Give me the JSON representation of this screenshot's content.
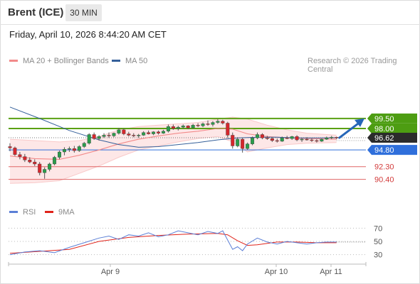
{
  "header": {
    "title": "Brent (ICE)",
    "timeframe": "30 MIN"
  },
  "datetime": "Friday, April 10, 2026 8:44:20 AM CET",
  "legend": {
    "main": [
      {
        "label": "MA 20 + Bollinger Bands",
        "color": "#f28a8a"
      },
      {
        "label": "MA 50",
        "color": "#35609a"
      }
    ],
    "rsi": [
      {
        "label": "RSI",
        "color": "#5b7fd6"
      },
      {
        "label": "9MA",
        "color": "#e0231a"
      }
    ]
  },
  "research_text": "Research © 2026 Trading Central",
  "chart_data": {
    "type": "line",
    "x_ticks": [
      "Apr 9",
      "Apr 10",
      "Apr 11"
    ],
    "y_range": [
      87.5,
      101.5
    ],
    "levels": [
      {
        "label": "99.50",
        "value": 99.5,
        "kind": "resistance",
        "color": "#5aa013"
      },
      {
        "label": "98.00",
        "value": 98.0,
        "kind": "resistance",
        "color": "#5aa013"
      },
      {
        "label": "96.62",
        "value": 96.62,
        "kind": "last-price",
        "color": "#333333"
      },
      {
        "label": "94.80",
        "value": 94.8,
        "kind": "pivot",
        "color": "#2f6fdb"
      },
      {
        "label": "92.30",
        "value": 92.3,
        "kind": "support",
        "color": "#e06666"
      },
      {
        "label": "90.40",
        "value": 90.4,
        "kind": "support",
        "color": "#e06666"
      }
    ],
    "candles": [
      [
        95.3,
        95.8,
        94.6,
        95.1
      ],
      [
        95.1,
        95.3,
        93.9,
        94.1
      ],
      [
        94.1,
        94.5,
        93.4,
        93.8
      ],
      [
        93.8,
        94.2,
        93.0,
        93.3
      ],
      [
        93.3,
        93.7,
        92.8,
        93.0
      ],
      [
        93.0,
        93.4,
        92.4,
        92.7
      ],
      [
        92.7,
        93.0,
        91.0,
        91.4
      ],
      [
        91.4,
        92.2,
        90.5,
        91.9
      ],
      [
        91.9,
        92.9,
        91.6,
        92.7
      ],
      [
        92.7,
        93.9,
        92.5,
        93.7
      ],
      [
        93.7,
        94.7,
        93.4,
        94.5
      ],
      [
        94.5,
        95.2,
        94.0,
        94.9
      ],
      [
        94.9,
        95.3,
        94.5,
        95.0
      ],
      [
        95.0,
        95.4,
        94.4,
        94.7
      ],
      [
        94.7,
        95.5,
        94.5,
        95.3
      ],
      [
        95.3,
        96.0,
        95.1,
        95.8
      ],
      [
        95.8,
        97.3,
        95.6,
        97.1
      ],
      [
        97.1,
        97.4,
        96.3,
        96.5
      ],
      [
        96.5,
        97.0,
        96.2,
        96.8
      ],
      [
        96.8,
        97.3,
        96.6,
        97.0
      ],
      [
        97.0,
        97.4,
        96.6,
        96.9
      ],
      [
        96.9,
        97.4,
        96.7,
        97.3
      ],
      [
        97.3,
        98.1,
        97.1,
        97.8
      ],
      [
        97.8,
        98.0,
        97.0,
        97.2
      ],
      [
        97.2,
        97.5,
        96.8,
        97.0
      ],
      [
        97.0,
        97.3,
        96.7,
        96.9
      ],
      [
        96.9,
        97.2,
        96.6,
        97.0
      ],
      [
        97.0,
        97.6,
        96.9,
        97.4
      ],
      [
        97.4,
        97.7,
        97.1,
        97.2
      ],
      [
        97.2,
        97.6,
        97.0,
        97.5
      ],
      [
        97.5,
        97.7,
        97.1,
        97.3
      ],
      [
        97.3,
        97.8,
        97.2,
        97.6
      ],
      [
        97.6,
        98.6,
        97.4,
        98.3
      ],
      [
        98.3,
        98.6,
        97.8,
        98.0
      ],
      [
        98.0,
        98.4,
        97.7,
        98.2
      ],
      [
        98.2,
        98.6,
        98.0,
        98.4
      ],
      [
        98.4,
        98.5,
        97.9,
        98.1
      ],
      [
        98.1,
        98.7,
        98.0,
        98.5
      ],
      [
        98.5,
        98.8,
        98.2,
        98.4
      ],
      [
        98.4,
        98.9,
        98.2,
        98.7
      ],
      [
        98.7,
        99.2,
        98.4,
        98.6
      ],
      [
        98.6,
        99.1,
        98.3,
        98.9
      ],
      [
        98.9,
        99.4,
        98.7,
        99.1
      ],
      [
        99.1,
        99.3,
        98.6,
        98.8
      ],
      [
        98.8,
        99.0,
        96.6,
        97.0
      ],
      [
        97.0,
        97.4,
        95.0,
        95.4
      ],
      [
        95.4,
        96.7,
        95.2,
        96.4
      ],
      [
        96.4,
        96.6,
        94.4,
        95.0
      ],
      [
        95.0,
        95.9,
        94.8,
        95.7
      ],
      [
        95.7,
        96.8,
        95.5,
        96.6
      ],
      [
        96.6,
        97.4,
        96.4,
        97.1
      ],
      [
        97.1,
        97.3,
        96.4,
        96.6
      ],
      [
        96.6,
        96.9,
        96.3,
        96.5
      ],
      [
        96.5,
        96.7,
        96.0,
        96.2
      ],
      [
        96.2,
        96.5,
        95.9,
        96.1
      ],
      [
        96.1,
        96.8,
        96.0,
        96.6
      ],
      [
        96.6,
        96.9,
        96.4,
        96.5
      ],
      [
        96.5,
        96.9,
        96.3,
        96.8
      ],
      [
        96.8,
        97.0,
        96.1,
        96.3
      ],
      [
        96.3,
        96.6,
        96.0,
        96.4
      ],
      [
        96.4,
        96.7,
        96.2,
        96.3
      ],
      [
        96.3,
        96.5,
        96.0,
        96.2
      ],
      [
        96.2,
        96.4,
        95.9,
        96.1
      ],
      [
        96.1,
        96.5,
        96.0,
        96.4
      ],
      [
        96.4,
        96.8,
        96.3,
        96.6
      ],
      [
        96.6,
        96.9,
        96.4,
        96.7
      ],
      [
        96.7,
        96.8,
        96.4,
        96.62
      ]
    ],
    "ma50": [
      [
        0,
        101.2
      ],
      [
        6,
        99.5
      ],
      [
        12,
        97.7
      ],
      [
        18,
        96.3
      ],
      [
        22,
        95.6
      ],
      [
        26,
        95.2
      ],
      [
        30,
        95.3
      ],
      [
        34,
        95.6
      ],
      [
        38,
        95.9
      ],
      [
        42,
        96.3
      ],
      [
        46,
        96.6
      ],
      [
        50,
        96.7
      ],
      [
        54,
        96.7
      ],
      [
        58,
        96.6
      ],
      [
        62,
        96.6
      ],
      [
        66,
        96.62
      ]
    ],
    "ma20": [
      [
        0,
        93.9
      ],
      [
        5,
        93.5
      ],
      [
        10,
        93.4
      ],
      [
        14,
        94.0
      ],
      [
        18,
        94.8
      ],
      [
        22,
        95.7
      ],
      [
        26,
        96.4
      ],
      [
        30,
        96.9
      ],
      [
        34,
        97.3
      ],
      [
        38,
        97.6
      ],
      [
        42,
        98.0
      ],
      [
        45,
        97.9
      ],
      [
        48,
        97.2
      ],
      [
        52,
        96.8
      ],
      [
        56,
        96.6
      ],
      [
        60,
        96.5
      ],
      [
        66,
        96.4
      ]
    ],
    "bb_upper": [
      [
        0,
        96.4
      ],
      [
        5,
        96.2
      ],
      [
        10,
        96.0
      ],
      [
        14,
        96.2
      ],
      [
        18,
        96.8
      ],
      [
        22,
        97.8
      ],
      [
        26,
        98.3
      ],
      [
        30,
        98.5
      ],
      [
        34,
        98.7
      ],
      [
        38,
        98.9
      ],
      [
        42,
        99.4
      ],
      [
        45,
        99.7
      ],
      [
        48,
        99.4
      ],
      [
        52,
        98.5
      ],
      [
        56,
        97.8
      ],
      [
        60,
        97.3
      ],
      [
        66,
        97.0
      ]
    ],
    "bb_lower": [
      [
        0,
        89.8
      ],
      [
        5,
        89.9
      ],
      [
        10,
        90.2
      ],
      [
        14,
        91.3
      ],
      [
        18,
        92.4
      ],
      [
        22,
        93.7
      ],
      [
        26,
        94.8
      ],
      [
        30,
        95.4
      ],
      [
        34,
        96.0
      ],
      [
        38,
        96.5
      ],
      [
        42,
        96.8
      ],
      [
        45,
        96.0
      ],
      [
        48,
        94.5
      ],
      [
        52,
        95.1
      ],
      [
        56,
        95.6
      ],
      [
        60,
        95.8
      ],
      [
        66,
        95.9
      ]
    ],
    "arrow": {
      "from": [
        96.62
      ],
      "to": [
        99.5
      ]
    },
    "rsi": {
      "y_ticks": [
        "70",
        "50",
        "30"
      ],
      "y_range": [
        20,
        80
      ],
      "rsi_values": [
        [
          0,
          30
        ],
        [
          3,
          34
        ],
        [
          6,
          36
        ],
        [
          9,
          33
        ],
        [
          12,
          41
        ],
        [
          15,
          48
        ],
        [
          18,
          55
        ],
        [
          20,
          58
        ],
        [
          22,
          53
        ],
        [
          24,
          60
        ],
        [
          26,
          58
        ],
        [
          28,
          63
        ],
        [
          30,
          57
        ],
        [
          32,
          60
        ],
        [
          34,
          66
        ],
        [
          36,
          63
        ],
        [
          38,
          60
        ],
        [
          40,
          65
        ],
        [
          42,
          62
        ],
        [
          43,
          66
        ],
        [
          44,
          52
        ],
        [
          45,
          38
        ],
        [
          46,
          42
        ],
        [
          47,
          36
        ],
        [
          48,
          46
        ],
        [
          50,
          55
        ],
        [
          52,
          49
        ],
        [
          54,
          46
        ],
        [
          56,
          50
        ],
        [
          58,
          48
        ],
        [
          60,
          46
        ],
        [
          62,
          48
        ],
        [
          64,
          49
        ],
        [
          66,
          49
        ]
      ],
      "ma_values": [
        [
          0,
          32
        ],
        [
          6,
          35
        ],
        [
          12,
          38
        ],
        [
          18,
          50
        ],
        [
          24,
          56
        ],
        [
          30,
          59
        ],
        [
          36,
          61
        ],
        [
          42,
          62
        ],
        [
          44,
          60
        ],
        [
          46,
          51
        ],
        [
          48,
          44
        ],
        [
          50,
          45
        ],
        [
          54,
          49
        ],
        [
          58,
          49
        ],
        [
          62,
          48
        ],
        [
          66,
          48
        ]
      ]
    }
  }
}
